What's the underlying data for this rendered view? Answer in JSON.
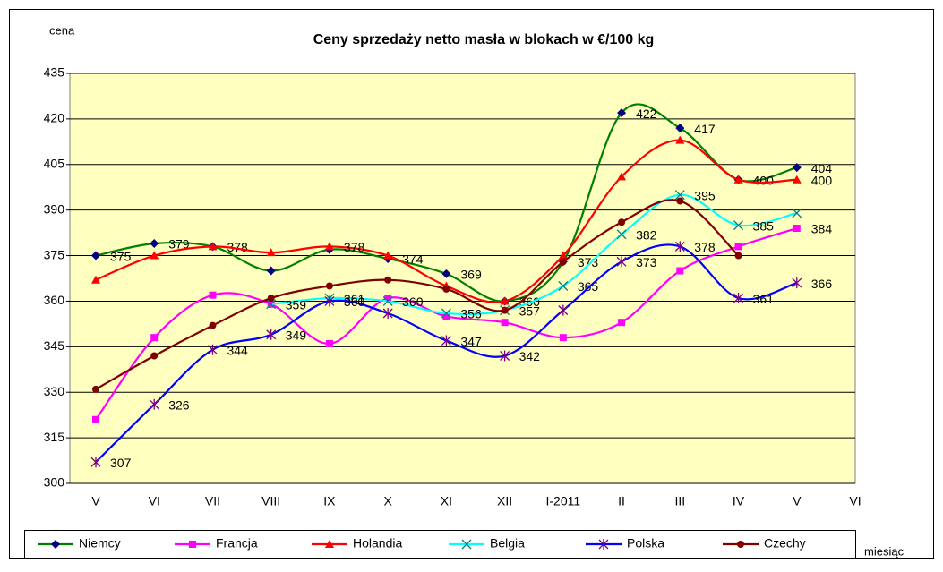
{
  "chart_data": {
    "type": "line",
    "title": "Ceny sprzedaży netto masła w blokach w €/100 kg",
    "y_label": "cena",
    "x_label": "miesiąc",
    "categories": [
      "V",
      "VI",
      "VII",
      "VIII",
      "IX",
      "X",
      "XI",
      "XII",
      "I-2011",
      "II",
      "III",
      "IV",
      "V",
      "VI"
    ],
    "ylim": [
      300,
      435
    ],
    "yticks": [
      300,
      315,
      330,
      345,
      360,
      375,
      390,
      405,
      420,
      435
    ],
    "grid": true,
    "smooth": true,
    "legend": "bottom",
    "series": [
      {
        "name": "Niemcy",
        "color": "#008000",
        "marker": "diamond",
        "marker_color": "#000080",
        "values": [
          375,
          379,
          378,
          370,
          377,
          374,
          369,
          360,
          373,
          422,
          417,
          400,
          404,
          null
        ],
        "value_labels": [
          "375",
          "379",
          "378",
          null,
          null,
          "374",
          "369",
          null,
          "373",
          "422",
          "417",
          "400",
          "404",
          null
        ]
      },
      {
        "name": "Francja",
        "color": "#ff00ff",
        "marker": "square",
        "marker_color": "#ff00ff",
        "values": [
          321,
          348,
          362,
          359,
          346,
          361,
          355,
          353,
          348,
          353,
          370,
          378,
          384,
          null
        ],
        "value_labels": [
          null,
          null,
          null,
          null,
          null,
          null,
          null,
          null,
          null,
          null,
          null,
          null,
          "384",
          null
        ]
      },
      {
        "name": "Holandia",
        "color": "#ff0000",
        "marker": "triangle",
        "marker_color": "#ff0000",
        "values": [
          367,
          375,
          378,
          376,
          378,
          375,
          365,
          360,
          375,
          401,
          413,
          400,
          400,
          null
        ],
        "value_labels": [
          null,
          null,
          null,
          null,
          "378",
          null,
          null,
          "360",
          null,
          null,
          null,
          null,
          "400",
          null
        ]
      },
      {
        "name": "Belgia",
        "color": "#00ffff",
        "marker": "x",
        "marker_color": "#008080",
        "values": [
          null,
          null,
          null,
          359,
          361,
          360,
          356,
          357,
          365,
          382,
          395,
          385,
          389,
          null
        ],
        "value_labels": [
          null,
          null,
          null,
          "359",
          "361",
          "360",
          "356",
          null,
          "365",
          "382",
          "395",
          "385",
          null,
          null
        ]
      },
      {
        "name": "Polska",
        "color": "#0000ff",
        "marker": "star",
        "marker_color": "#800080",
        "values": [
          307,
          326,
          344,
          349,
          360,
          356,
          347,
          342,
          357,
          373,
          378,
          361,
          366,
          null
        ],
        "value_labels": [
          "307",
          "326",
          "344",
          "349",
          "360",
          null,
          "347",
          "342",
          null,
          "373",
          "378",
          "361",
          "366",
          null
        ]
      },
      {
        "name": "Czechy",
        "color": "#800000",
        "marker": "circle",
        "marker_color": "#800000",
        "values": [
          331,
          342,
          352,
          361,
          365,
          367,
          364,
          357,
          373,
          386,
          393,
          375,
          null,
          null
        ],
        "value_labels": [
          null,
          null,
          null,
          null,
          null,
          null,
          null,
          "357",
          null,
          null,
          null,
          null,
          null,
          null
        ]
      }
    ]
  }
}
